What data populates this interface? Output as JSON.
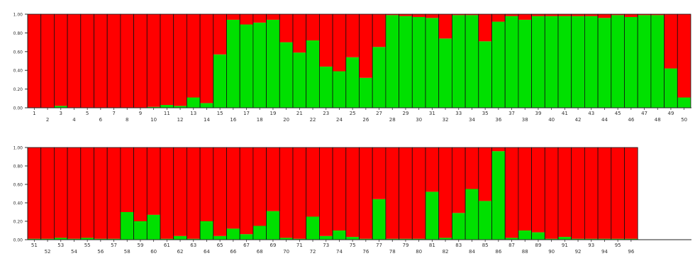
{
  "chart_data": [
    {
      "type": "bar",
      "stacked": true,
      "ylim": [
        0,
        1
      ],
      "yticks": [
        "0.00",
        "0.20",
        "0.40",
        "0.60",
        "0.80",
        "1.00"
      ],
      "categories": [
        "1",
        "2",
        "3",
        "4",
        "5",
        "6",
        "7",
        "8",
        "9",
        "10",
        "11",
        "12",
        "13",
        "14",
        "15",
        "16",
        "17",
        "18",
        "19",
        "20",
        "21",
        "22",
        "23",
        "24",
        "25",
        "26",
        "27",
        "28",
        "29",
        "30",
        "31",
        "32",
        "33",
        "34",
        "35",
        "36",
        "37",
        "38",
        "39",
        "40",
        "41",
        "42",
        "43",
        "44",
        "45",
        "46",
        "47",
        "48",
        "49",
        "50"
      ],
      "series": [
        {
          "color": "#00e000",
          "values": [
            0.0,
            0.0,
            0.02,
            0.0,
            0.0,
            0.0,
            0.0,
            0.0,
            0.0,
            0.01,
            0.03,
            0.02,
            0.11,
            0.05,
            0.57,
            0.94,
            0.89,
            0.91,
            0.94,
            0.7,
            0.59,
            0.72,
            0.44,
            0.39,
            0.54,
            0.32,
            0.65,
            0.99,
            0.98,
            0.97,
            0.96,
            0.74,
            0.99,
            0.99,
            0.71,
            0.92,
            0.98,
            0.94,
            0.98,
            0.98,
            0.98,
            0.98,
            0.98,
            0.96,
            0.99,
            0.97,
            0.99,
            0.99,
            0.42,
            0.11
          ]
        },
        {
          "color": "#ff0000",
          "values": [
            1.0,
            1.0,
            0.98,
            1.0,
            1.0,
            1.0,
            1.0,
            1.0,
            1.0,
            0.99,
            0.97,
            0.98,
            0.89,
            0.95,
            0.43,
            0.06,
            0.11,
            0.09,
            0.06,
            0.3,
            0.41,
            0.28,
            0.56,
            0.61,
            0.46,
            0.68,
            0.35,
            0.01,
            0.02,
            0.03,
            0.04,
            0.26,
            0.01,
            0.01,
            0.29,
            0.08,
            0.02,
            0.06,
            0.02,
            0.02,
            0.02,
            0.02,
            0.02,
            0.04,
            0.01,
            0.03,
            0.01,
            0.01,
            0.58,
            0.89
          ]
        }
      ]
    },
    {
      "type": "bar",
      "stacked": true,
      "ylim": [
        0,
        1
      ],
      "yticks": [
        "0.00",
        "0.20",
        "0.40",
        "0.60",
        "0.80",
        "1.00"
      ],
      "categories": [
        "51",
        "52",
        "53",
        "54",
        "55",
        "56",
        "57",
        "58",
        "59",
        "60",
        "61",
        "62",
        "63",
        "64",
        "65",
        "66",
        "67",
        "68",
        "69",
        "70",
        "71",
        "72",
        "73",
        "74",
        "75",
        "76",
        "77",
        "78",
        "79",
        "80",
        "81",
        "82",
        "83",
        "84",
        "85",
        "86",
        "87",
        "88",
        "89",
        "90",
        "91",
        "92",
        "93",
        "94",
        "95",
        "96"
      ],
      "series": [
        {
          "color": "#00e000",
          "values": [
            0.01,
            0.01,
            0.02,
            0.01,
            0.02,
            0.01,
            0.01,
            0.3,
            0.2,
            0.27,
            0.01,
            0.04,
            0.01,
            0.2,
            0.04,
            0.12,
            0.06,
            0.15,
            0.31,
            0.02,
            0.01,
            0.25,
            0.04,
            0.1,
            0.03,
            0.01,
            0.44,
            0.01,
            0.01,
            0.01,
            0.52,
            0.02,
            0.29,
            0.55,
            0.42,
            0.96,
            0.02,
            0.1,
            0.08,
            0.01,
            0.03,
            0.01,
            0.01,
            0.01,
            0.01,
            0.01
          ]
        },
        {
          "color": "#ff0000",
          "values": [
            0.99,
            0.99,
            0.98,
            0.99,
            0.98,
            0.99,
            0.99,
            0.7,
            0.8,
            0.73,
            0.99,
            0.96,
            0.99,
            0.8,
            0.96,
            0.88,
            0.94,
            0.85,
            0.69,
            0.98,
            0.99,
            0.75,
            0.96,
            0.9,
            0.97,
            0.99,
            0.56,
            0.99,
            0.99,
            0.99,
            0.48,
            0.98,
            0.71,
            0.45,
            0.58,
            0.04,
            0.98,
            0.9,
            0.92,
            0.99,
            0.97,
            0.99,
            0.99,
            0.99,
            0.99,
            0.99
          ]
        }
      ]
    }
  ]
}
